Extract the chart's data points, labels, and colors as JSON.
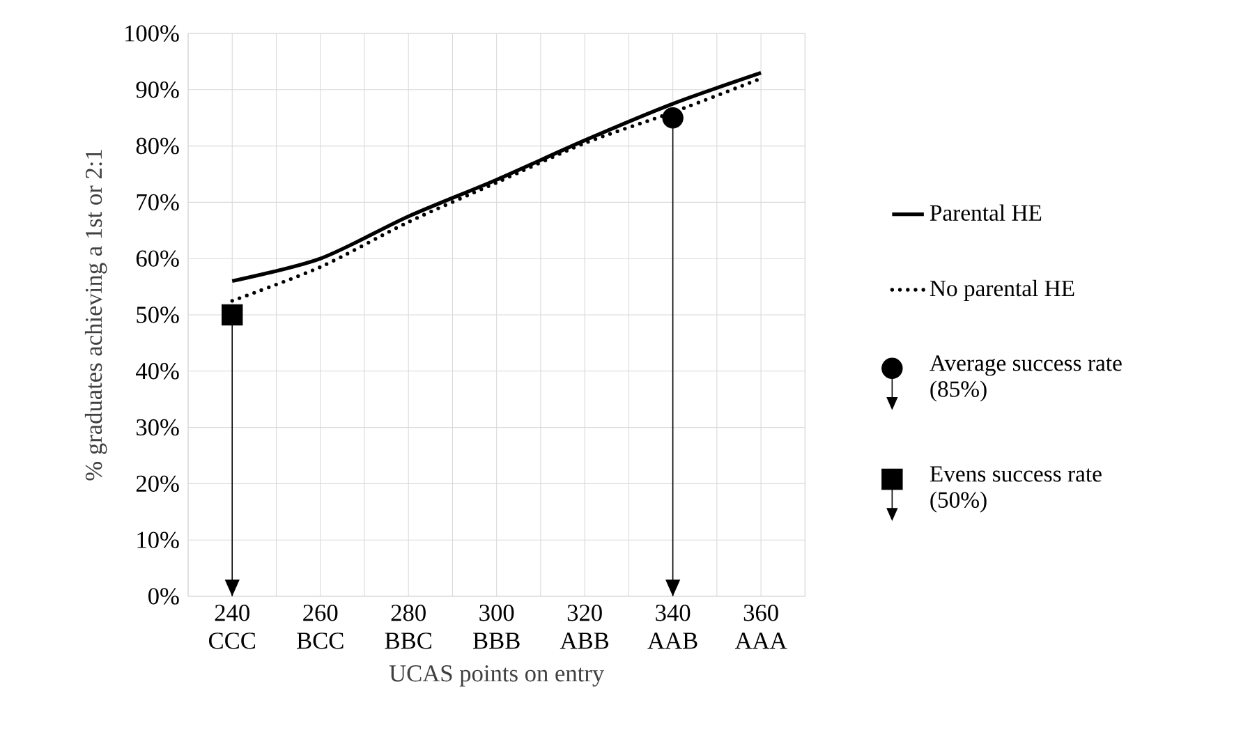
{
  "chart_data": {
    "type": "line",
    "xlabel": "UCAS points on entry",
    "ylabel": "% graduates achieving a 1st or 2:1",
    "xlim": [
      230,
      370
    ],
    "ylim": [
      0,
      100
    ],
    "xticks": [
      {
        "value": 230,
        "label": null
      },
      {
        "value": 240,
        "label": "240 CCC"
      },
      {
        "value": 250,
        "label": null
      },
      {
        "value": 260,
        "label": "260 BCC"
      },
      {
        "value": 270,
        "label": null
      },
      {
        "value": 280,
        "label": "280 BBC"
      },
      {
        "value": 290,
        "label": null
      },
      {
        "value": 300,
        "label": "300 BBB"
      },
      {
        "value": 310,
        "label": null
      },
      {
        "value": 320,
        "label": "320 ABB"
      },
      {
        "value": 330,
        "label": null
      },
      {
        "value": 340,
        "label": "340 AAB"
      },
      {
        "value": 350,
        "label": null
      },
      {
        "value": 360,
        "label": "360 AAA"
      },
      {
        "value": 370,
        "label": null
      }
    ],
    "yticks": [
      {
        "value": 0,
        "label": "0%"
      },
      {
        "value": 10,
        "label": "10%"
      },
      {
        "value": 20,
        "label": "20%"
      },
      {
        "value": 30,
        "label": "30%"
      },
      {
        "value": 40,
        "label": "40%"
      },
      {
        "value": 50,
        "label": "50%"
      },
      {
        "value": 60,
        "label": "60%"
      },
      {
        "value": 70,
        "label": "70%"
      },
      {
        "value": 80,
        "label": "80%"
      },
      {
        "value": 90,
        "label": "90%"
      },
      {
        "value": 100,
        "label": "100%"
      }
    ],
    "grid": true,
    "legend": "right",
    "series": [
      {
        "name": "Parental HE",
        "color": "#000000",
        "line_style": "solid",
        "marker": "none",
        "x": [
          240,
          260,
          280,
          300,
          320,
          340,
          360
        ],
        "values": [
          56,
          60,
          67.5,
          74,
          81,
          87.5,
          93
        ]
      },
      {
        "name": "No parental HE",
        "color": "#000000",
        "line_style": "dotted",
        "marker": "none",
        "x": [
          240,
          260,
          280,
          300,
          320,
          340,
          360
        ],
        "values": [
          52.5,
          58.5,
          66.5,
          73.5,
          80.5,
          86,
          92
        ]
      },
      {
        "name": "Average success rate (85%)",
        "type": "scatter",
        "color": "#000000",
        "marker": "circle",
        "x": [
          340
        ],
        "values": [
          85
        ],
        "errors": [
          [
            0,
            85
          ]
        ]
      },
      {
        "name": "Evens success rate (50%)",
        "type": "scatter",
        "color": "#000000",
        "marker": "square",
        "x": [
          240
        ],
        "values": [
          50
        ],
        "errors": [
          [
            0,
            50
          ]
        ]
      }
    ]
  }
}
